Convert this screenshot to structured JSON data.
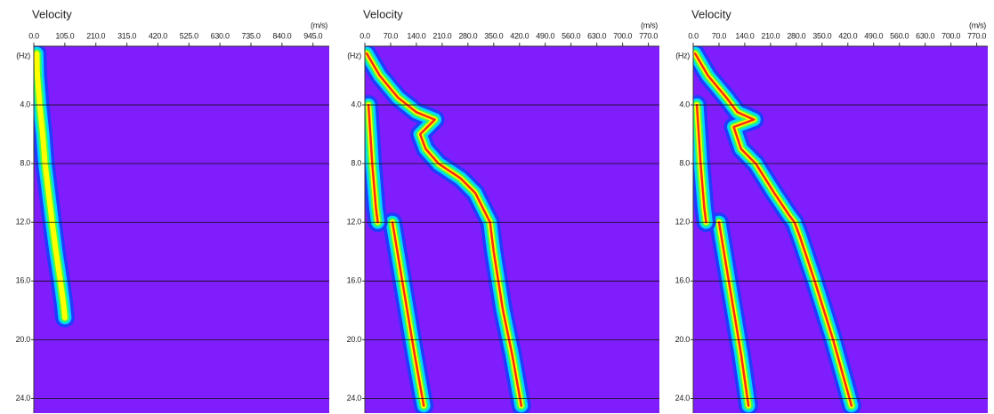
{
  "chart_data": [
    {
      "type": "dispersion",
      "title": "Velocity",
      "x_unit": "(m/s)",
      "y_label": "(Hz)",
      "xlim": [
        0,
        1000
      ],
      "xticks": [
        {
          "value": 0,
          "label": "0.0"
        },
        {
          "value": 105,
          "label": "105.0"
        },
        {
          "value": 210,
          "label": "210.0"
        },
        {
          "value": 315,
          "label": "315.0"
        },
        {
          "value": 420,
          "label": "420.0"
        },
        {
          "value": 525,
          "label": "525.0"
        },
        {
          "value": 630,
          "label": "630.0"
        },
        {
          "value": 735,
          "label": "735.0"
        },
        {
          "value": 840,
          "label": "840.0"
        },
        {
          "value": 945,
          "label": "945.0"
        }
      ],
      "ylim": [
        0,
        25
      ],
      "y_inverted": true,
      "yticks": [
        {
          "value": 4,
          "label": "4.0"
        },
        {
          "value": 8,
          "label": "8.0"
        },
        {
          "value": 12,
          "label": "12.0"
        },
        {
          "value": 16,
          "label": "16.0"
        },
        {
          "value": 20,
          "label": "20.0"
        },
        {
          "value": 24,
          "label": "24.0"
        }
      ],
      "grid": true,
      "background": "#7f1dfc",
      "ridge_colors": [
        "#1f3cff",
        "#00d4ff",
        "#3cff50",
        "#ffff00"
      ],
      "series": [
        {
          "x": [
            10,
            12,
            20,
            30,
            38,
            50,
            62,
            75,
            90,
            100,
            105
          ],
          "y": [
            0.5,
            2,
            4,
            6,
            8,
            10,
            12,
            14,
            16,
            17.5,
            18.5
          ]
        }
      ]
    },
    {
      "type": "dispersion",
      "title": "Velocity",
      "x_unit": "(m/s)",
      "y_label": "(Hz)",
      "xlim": [
        0,
        800
      ],
      "xticks": [
        {
          "value": 0,
          "label": "0.0"
        },
        {
          "value": 70,
          "label": "70.0"
        },
        {
          "value": 140,
          "label": "140.0"
        },
        {
          "value": 210,
          "label": "210.0"
        },
        {
          "value": 280,
          "label": "280.0"
        },
        {
          "value": 350,
          "label": "350.0"
        },
        {
          "value": 420,
          "label": "420.0"
        },
        {
          "value": 490,
          "label": "490.0"
        },
        {
          "value": 560,
          "label": "560.0"
        },
        {
          "value": 630,
          "label": "630.0"
        },
        {
          "value": 700,
          "label": "700.0"
        },
        {
          "value": 770,
          "label": "770.0"
        }
      ],
      "ylim": [
        0,
        25
      ],
      "y_inverted": true,
      "yticks": [
        {
          "value": 4,
          "label": "4.0"
        },
        {
          "value": 8,
          "label": "8.0"
        },
        {
          "value": 12,
          "label": "12.0"
        },
        {
          "value": 16,
          "label": "16.0"
        },
        {
          "value": 20,
          "label": "20.0"
        },
        {
          "value": 24,
          "label": "24.0"
        }
      ],
      "grid": true,
      "background": "#7f1dfc",
      "ridge_colors": [
        "#1f3cff",
        "#00d4ff",
        "#3cff50",
        "#ffff00",
        "#ff2a10"
      ],
      "series": [
        {
          "x": [
            5,
            40,
            90,
            140,
            190,
            150,
            165,
            200,
            260,
            300,
            330,
            340,
            350,
            375,
            400,
            425
          ],
          "y": [
            0.5,
            2,
            3.5,
            4.5,
            5,
            6,
            7,
            8,
            9,
            10,
            11.5,
            12,
            14,
            18,
            21,
            24.5
          ]
        },
        {
          "x": [
            75,
            95,
            115,
            135,
            160
          ],
          "y": [
            12,
            15,
            18,
            21,
            24.5
          ]
        },
        {
          "x": [
            10,
            20,
            30,
            35
          ],
          "y": [
            4,
            8,
            11,
            12
          ]
        }
      ]
    },
    {
      "type": "dispersion",
      "title": "Velocity",
      "x_unit": "(m/s)",
      "y_label": "(Hz)",
      "xlim": [
        0,
        800
      ],
      "xticks": [
        {
          "value": 0,
          "label": "0.0"
        },
        {
          "value": 70,
          "label": "70.0"
        },
        {
          "value": 140,
          "label": "140.0"
        },
        {
          "value": 210,
          "label": "210.0"
        },
        {
          "value": 280,
          "label": "280.0"
        },
        {
          "value": 350,
          "label": "350.0"
        },
        {
          "value": 420,
          "label": "420.0"
        },
        {
          "value": 490,
          "label": "490.0"
        },
        {
          "value": 560,
          "label": "560.0"
        },
        {
          "value": 630,
          "label": "630.0"
        },
        {
          "value": 700,
          "label": "700.0"
        },
        {
          "value": 770,
          "label": "770.0"
        }
      ],
      "ylim": [
        0,
        25
      ],
      "y_inverted": true,
      "yticks": [
        {
          "value": 4,
          "label": "4.0"
        },
        {
          "value": 8,
          "label": "8.0"
        },
        {
          "value": 12,
          "label": "12.0"
        },
        {
          "value": 16,
          "label": "16.0"
        },
        {
          "value": 20,
          "label": "20.0"
        },
        {
          "value": 24,
          "label": "24.0"
        }
      ],
      "grid": true,
      "background": "#7f1dfc",
      "ridge_colors": [
        "#1f3cff",
        "#00d4ff",
        "#3cff50",
        "#ffff00",
        "#ff2a10"
      ],
      "series": [
        {
          "x": [
            5,
            40,
            90,
            120,
            165,
            110,
            130,
            170,
            220,
            260,
            275,
            290,
            330,
            380,
            430
          ],
          "y": [
            0.5,
            2,
            3.5,
            4.5,
            5,
            5.5,
            7,
            8,
            10,
            11.5,
            12,
            13,
            16,
            20,
            24.5
          ]
        },
        {
          "x": [
            70,
            90,
            110,
            130,
            150
          ],
          "y": [
            12,
            15,
            18,
            21,
            24.5
          ]
        },
        {
          "x": [
            10,
            20,
            30,
            35
          ],
          "y": [
            4,
            8,
            11,
            12
          ]
        }
      ]
    }
  ]
}
